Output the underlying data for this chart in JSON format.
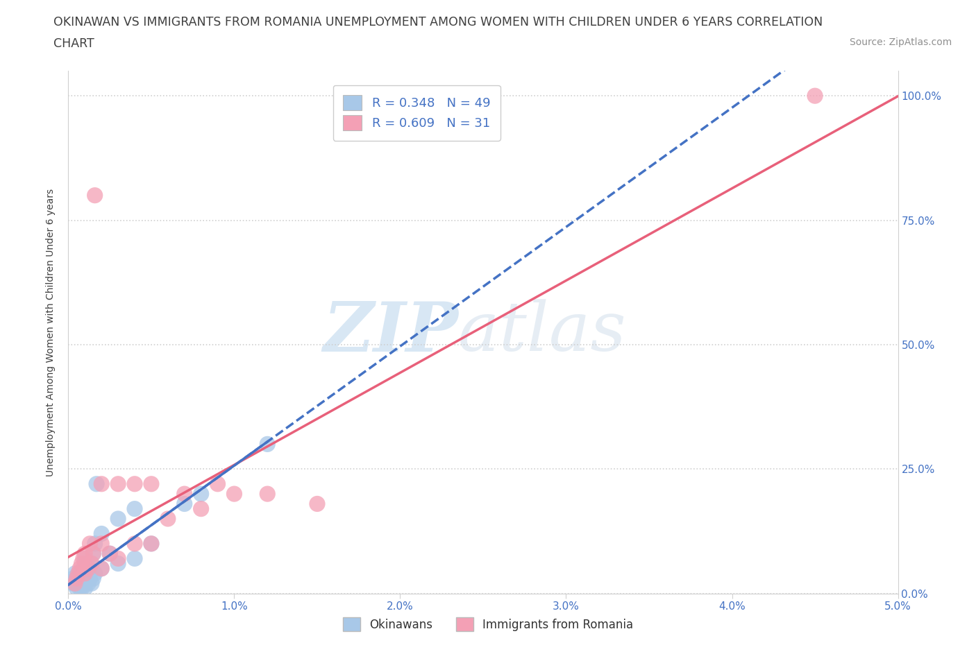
{
  "title_line1": "OKINAWAN VS IMMIGRANTS FROM ROMANIA UNEMPLOYMENT AMONG WOMEN WITH CHILDREN UNDER 6 YEARS CORRELATION",
  "title_line2": "CHART",
  "source": "Source: ZipAtlas.com",
  "ylabel": "Unemployment Among Women with Children Under 6 years",
  "xlim": [
    0.0,
    0.05
  ],
  "ylim": [
    0.0,
    1.05
  ],
  "watermark_zip": "ZIP",
  "watermark_atlas": "atlas",
  "legend_R1": "R = 0.348",
  "legend_N1": "N = 49",
  "legend_R2": "R = 0.609",
  "legend_N2": "N = 31",
  "okinawan_color": "#a8c8e8",
  "romania_color": "#f4a0b5",
  "okinawan_line_color": "#4472c4",
  "romania_line_color": "#e8607a",
  "background_color": "#ffffff",
  "grid_color": "#d0d0d0",
  "tick_color": "#4472c4",
  "title_color": "#404040",
  "ylabel_color": "#404040",
  "source_color": "#909090",
  "okinawan_x": [
    0.0003,
    0.0003,
    0.0004,
    0.0004,
    0.0005,
    0.0005,
    0.0005,
    0.0006,
    0.0006,
    0.0007,
    0.0007,
    0.0007,
    0.0008,
    0.0008,
    0.0008,
    0.0008,
    0.0009,
    0.0009,
    0.0009,
    0.001,
    0.001,
    0.001,
    0.001,
    0.001,
    0.001,
    0.001,
    0.001,
    0.0012,
    0.0012,
    0.0013,
    0.0013,
    0.0014,
    0.0014,
    0.0015,
    0.0015,
    0.0016,
    0.0016,
    0.0017,
    0.002,
    0.002,
    0.0025,
    0.003,
    0.003,
    0.004,
    0.004,
    0.005,
    0.007,
    0.008,
    0.012
  ],
  "okinawan_y": [
    0.02,
    0.03,
    0.02,
    0.04,
    0.01,
    0.02,
    0.03,
    0.02,
    0.04,
    0.01,
    0.02,
    0.03,
    0.01,
    0.02,
    0.03,
    0.04,
    0.02,
    0.03,
    0.05,
    0.01,
    0.02,
    0.02,
    0.03,
    0.04,
    0.05,
    0.06,
    0.07,
    0.02,
    0.04,
    0.03,
    0.05,
    0.02,
    0.06,
    0.03,
    0.08,
    0.04,
    0.1,
    0.22,
    0.05,
    0.12,
    0.08,
    0.06,
    0.15,
    0.07,
    0.17,
    0.1,
    0.18,
    0.2,
    0.3
  ],
  "romania_x": [
    0.0004,
    0.0005,
    0.0006,
    0.0007,
    0.0008,
    0.0009,
    0.001,
    0.001,
    0.0012,
    0.0013,
    0.0014,
    0.0015,
    0.0016,
    0.002,
    0.002,
    0.002,
    0.0025,
    0.003,
    0.003,
    0.004,
    0.004,
    0.005,
    0.005,
    0.006,
    0.007,
    0.008,
    0.009,
    0.01,
    0.012,
    0.015,
    0.045
  ],
  "romania_y": [
    0.02,
    0.03,
    0.04,
    0.05,
    0.06,
    0.07,
    0.04,
    0.08,
    0.05,
    0.1,
    0.06,
    0.08,
    0.8,
    0.05,
    0.1,
    0.22,
    0.08,
    0.07,
    0.22,
    0.1,
    0.22,
    0.1,
    0.22,
    0.15,
    0.2,
    0.17,
    0.22,
    0.2,
    0.2,
    0.18,
    1.0
  ],
  "title_fontsize": 12.5,
  "axis_label_fontsize": 10,
  "tick_fontsize": 11,
  "legend_fontsize": 13,
  "source_fontsize": 10
}
